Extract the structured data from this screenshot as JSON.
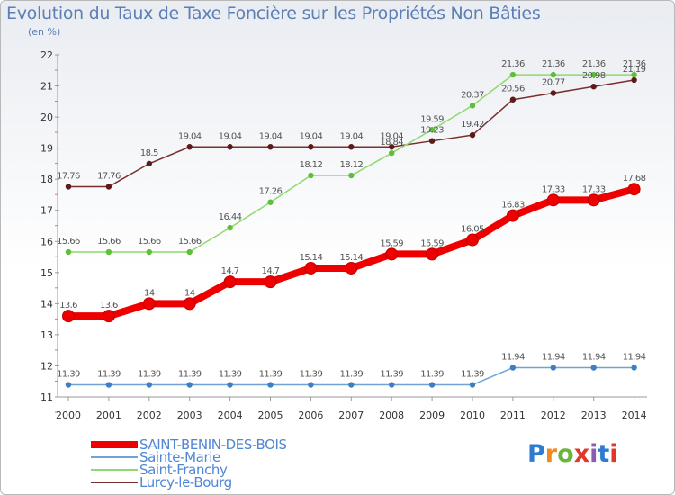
{
  "title": "Evolution du Taux de Taxe Foncière sur les Propriétés Non Bâties",
  "subtitle": "(en %)",
  "logo": {
    "text": "Proxiti",
    "letters": [
      "P",
      "r",
      "o",
      "x",
      "i",
      "t",
      "i"
    ],
    "colors": [
      "#2f7bd1",
      "#f28a24",
      "#6bb53b",
      "#e0372b",
      "#8b5db0",
      "#2f7bd1",
      "#e0372b"
    ]
  },
  "chart_data": {
    "type": "line",
    "title": "Evolution du Taux de Taxe Foncière sur les Propriétés Non Bâties",
    "ylabel": "(en %)",
    "categories": [
      "2000",
      "2001",
      "2002",
      "2003",
      "2004",
      "2005",
      "2006",
      "2007",
      "2008",
      "2009",
      "2010",
      "2011",
      "2012",
      "2013",
      "2014"
    ],
    "y_ticks": [
      11,
      12,
      13,
      14,
      15,
      16,
      17,
      18,
      19,
      20,
      21,
      22
    ],
    "ylim": [
      11,
      22
    ],
    "grid": false,
    "legend_position": "bottom-left",
    "series": [
      {
        "name": "SAINT-BENIN-DES-BOIS",
        "color": "#ee0000",
        "marker_color": "#ee0000",
        "values": [
          13.6,
          13.6,
          14,
          14,
          14.7,
          14.7,
          15.14,
          15.14,
          15.59,
          15.59,
          16.05,
          16.83,
          17.33,
          17.33,
          17.68
        ],
        "labels": [
          "13.6",
          "13.6",
          "14",
          "14",
          "14.7",
          "14.7",
          "15.14",
          "15.14",
          "15.59",
          "15.59",
          "16.05",
          "16.83",
          "17.33",
          "17.33",
          "17.68"
        ]
      },
      {
        "name": "Sainte-Marie",
        "color": "#6fa3d3",
        "marker_color": "#3d7fc4",
        "values": [
          11.39,
          11.39,
          11.39,
          11.39,
          11.39,
          11.39,
          11.39,
          11.39,
          11.39,
          11.39,
          11.39,
          11.94,
          11.94,
          11.94,
          11.94
        ],
        "labels": [
          "11.39",
          "11.39",
          "11.39",
          "11.39",
          "11.39",
          "11.39",
          "11.39",
          "11.39",
          "11.39",
          "11.39",
          "11.39",
          "11.94",
          "11.94",
          "11.94",
          "11.94"
        ]
      },
      {
        "name": "Saint-Franchy",
        "color": "#8fd96e",
        "marker_color": "#5fbf38",
        "values": [
          15.66,
          15.66,
          15.66,
          15.66,
          16.44,
          17.26,
          18.12,
          18.12,
          18.84,
          19.59,
          20.37,
          21.36,
          21.36,
          21.36,
          21.36
        ],
        "labels": [
          "15.66",
          "15.66",
          "15.66",
          "15.66",
          "16.44",
          "17.26",
          "18.12",
          "18.12",
          "18.84",
          "19.59",
          "20.37",
          "21.36",
          "21.36",
          "21.36",
          "21.36"
        ]
      },
      {
        "name": "Lurcy-le-Bourg",
        "color": "#7a2f2f",
        "marker_color": "#5e1a1a",
        "values": [
          17.76,
          17.76,
          18.5,
          19.04,
          19.04,
          19.04,
          19.04,
          19.04,
          19.04,
          19.23,
          19.42,
          20.56,
          20.77,
          20.98,
          21.19
        ],
        "labels": [
          "17.76",
          "17.76",
          "18.5",
          "19.04",
          "19.04",
          "19.04",
          "19.04",
          "19.04",
          "19.04",
          "19.23",
          "19.42",
          "20.56",
          "20.77",
          "20.98",
          "21.19"
        ]
      }
    ]
  }
}
